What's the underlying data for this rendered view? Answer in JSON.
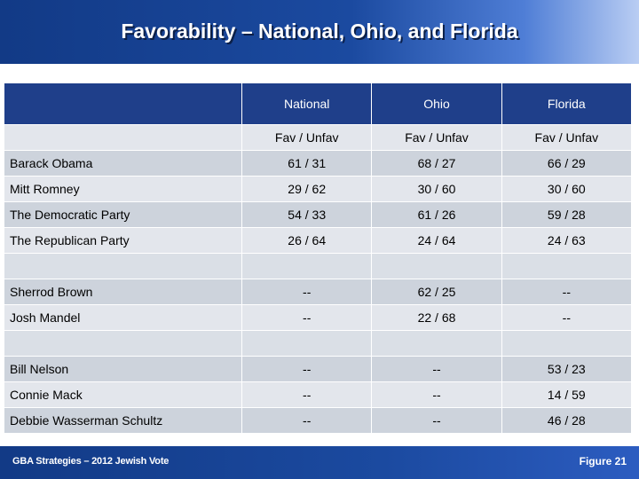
{
  "title": "Favorability – National, Ohio, and Florida",
  "columns": [
    "National",
    "Ohio",
    "Florida"
  ],
  "subheader": [
    "Fav / Unfav",
    "Fav / Unfav",
    "Fav / Unfav"
  ],
  "groups": [
    {
      "rows": [
        {
          "name": "Barack Obama",
          "values": [
            "61 / 31",
            "68 / 27",
            "66 / 29"
          ]
        },
        {
          "name": "Mitt Romney",
          "values": [
            "29 / 62",
            "30 / 60",
            "30 / 60"
          ]
        },
        {
          "name": "The Democratic Party",
          "values": [
            "54 / 33",
            "61 / 26",
            "59 / 28"
          ]
        },
        {
          "name": "The Republican Party",
          "values": [
            "26 / 64",
            "24 / 64",
            "24 / 63"
          ]
        }
      ]
    },
    {
      "rows": [
        {
          "name": "Sherrod Brown",
          "values": [
            "--",
            "62 / 25",
            "--"
          ]
        },
        {
          "name": "Josh Mandel",
          "values": [
            "--",
            "22 / 68",
            "--"
          ]
        }
      ]
    },
    {
      "rows": [
        {
          "name": "Bill Nelson",
          "values": [
            "--",
            "--",
            "53 / 23"
          ]
        },
        {
          "name": "Connie Mack",
          "values": [
            "--",
            "--",
            "14 / 59"
          ]
        },
        {
          "name": "Debbie Wasserman Schultz",
          "values": [
            "--",
            "--",
            "46 / 28"
          ]
        }
      ]
    }
  ],
  "footer": {
    "left": "GBA Strategies – 2012 Jewish Vote",
    "right": "Figure 21"
  },
  "colors": {
    "header_blue": "#1f3f8a",
    "row_dark": "#cdd3dc",
    "row_light": "#e3e6ec"
  }
}
